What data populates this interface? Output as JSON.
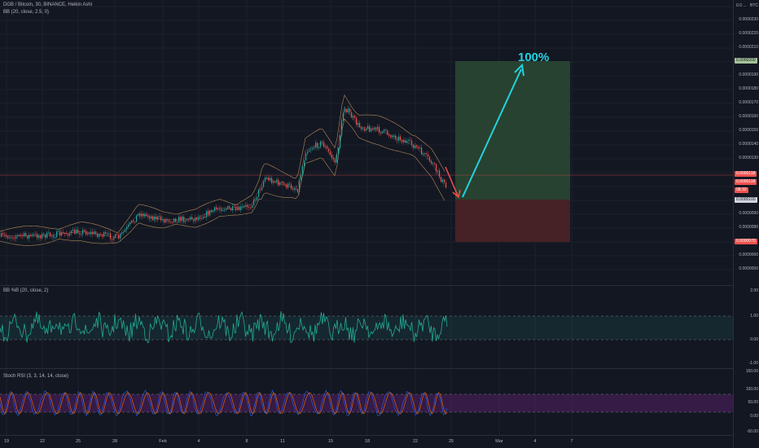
{
  "symbol_title": "DGB / Bitcoin, 30, BINANCE, Heikin Ashi",
  "bb_legend": "BB (20, close, 2.5, 0)",
  "bbpct_legend": "BB %B (20, close, 2)",
  "stoch_legend": "Stoch RSI (3, 3, 14, 14, close)",
  "currency": "BTC",
  "price_labels": [
    "0.0000230",
    "0.0000220",
    "0.0000210",
    "0.0000190",
    "0.0000180",
    "0.0000170",
    "0.0000160",
    "0.0000150",
    "0.0000140",
    "0.0000130",
    "0.0000090",
    "0.0000080",
    "0.0000060",
    "0.0000050"
  ],
  "top_label": "0.0 ...",
  "price_tags": {
    "target": "0.0000200",
    "current_a": "0.0000118",
    "current_b": "0.0000118",
    "countdown": "08:33",
    "entry": "0.0000100",
    "stop": "0.0000070"
  },
  "annotation": "100%",
  "bbpct_labels": [
    "2.00",
    "1.00",
    "0.00",
    "-1.00"
  ],
  "stoch_labels": [
    "150.00",
    "100.00",
    "50.00",
    "0.00",
    "-50.00"
  ],
  "date_labels": [
    "19",
    "22",
    "25",
    "28",
    "Feb",
    "4",
    "8",
    "11",
    "15",
    "18",
    "22",
    "25",
    "Mar",
    "4",
    "7"
  ],
  "colors": {
    "background": "#131722",
    "up": "#26a69a",
    "down": "#ef5350",
    "target_zone": "#2b4a33",
    "stop_zone": "#4d2227",
    "arrow": "#22d3e0",
    "stoch": "#9c27b0"
  }
}
